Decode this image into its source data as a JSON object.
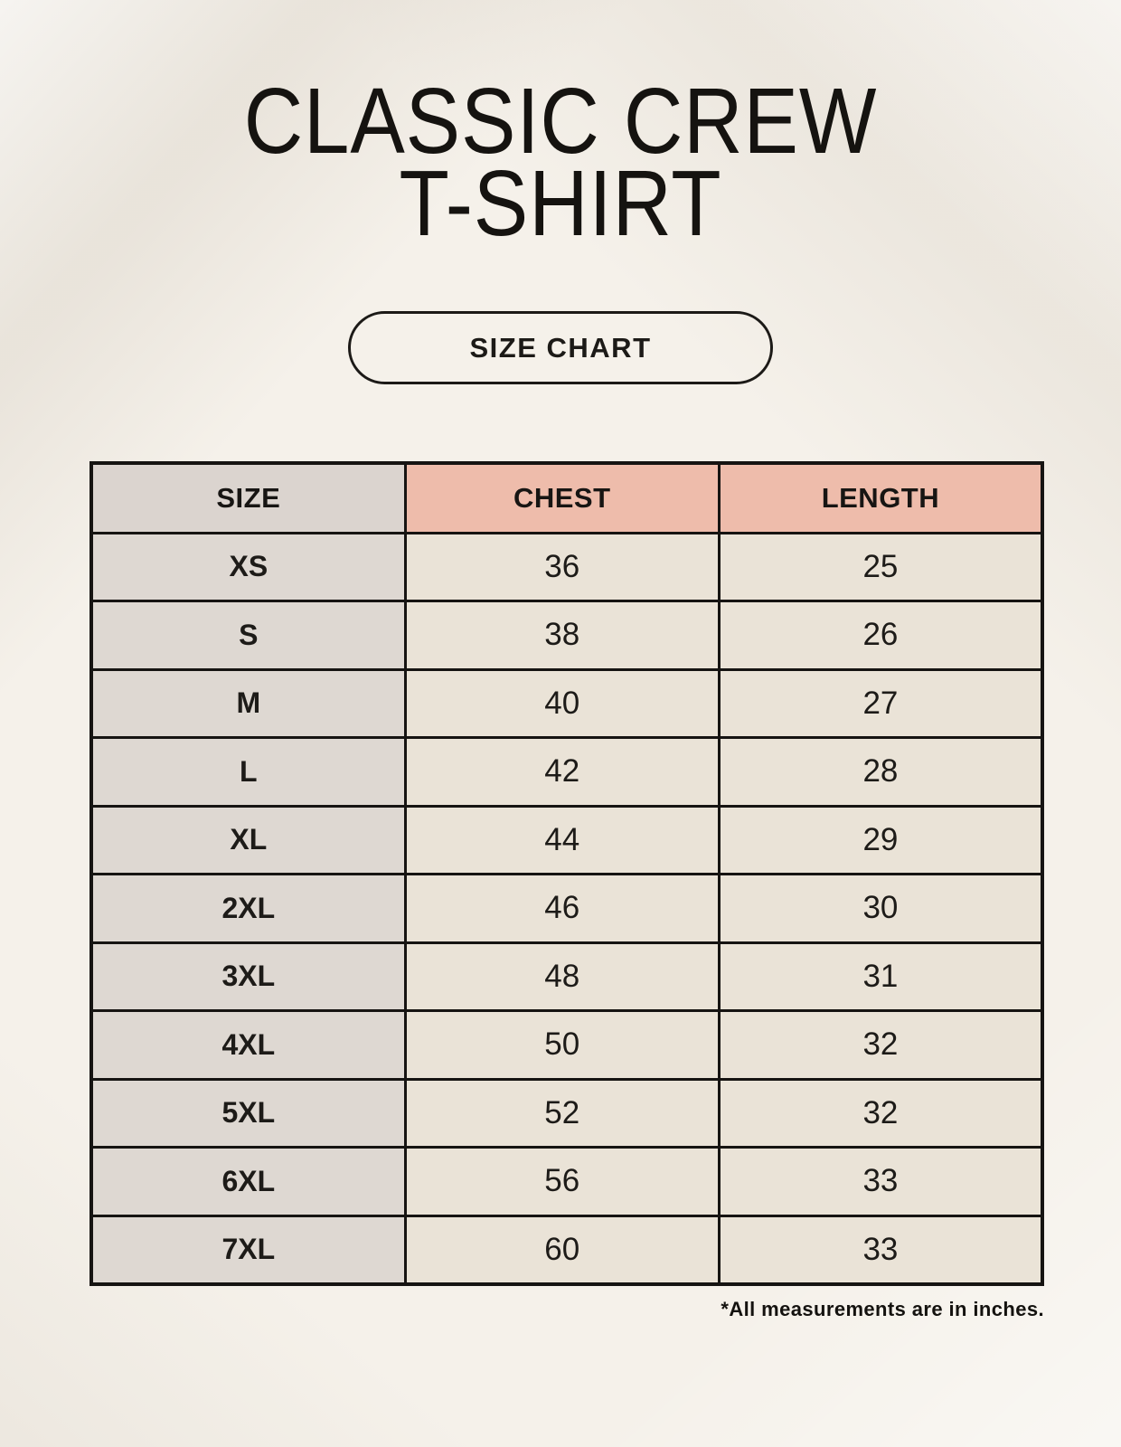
{
  "page": {
    "title_line1": "CLASSIC CREW",
    "title_line2": "T-SHIRT",
    "badge_label": "SIZE CHART",
    "footnote": "*All measurements are in inches."
  },
  "table": {
    "headers": [
      "SIZE",
      "CHEST",
      "LENGTH"
    ],
    "rows": [
      {
        "size": "XS",
        "chest": "36",
        "length": "25"
      },
      {
        "size": "S",
        "chest": "38",
        "length": "26"
      },
      {
        "size": "M",
        "chest": "40",
        "length": "27"
      },
      {
        "size": "L",
        "chest": "42",
        "length": "28"
      },
      {
        "size": "XL",
        "chest": "44",
        "length": "29"
      },
      {
        "size": "2XL",
        "chest": "46",
        "length": "30"
      },
      {
        "size": "3XL",
        "chest": "48",
        "length": "31"
      },
      {
        "size": "4XL",
        "chest": "50",
        "length": "32"
      },
      {
        "size": "5XL",
        "chest": "52",
        "length": "32"
      },
      {
        "size": "6XL",
        "chest": "56",
        "length": "33"
      },
      {
        "size": "7XL",
        "chest": "60",
        "length": "33"
      }
    ],
    "units": "inches"
  },
  "colors": {
    "background": "#f5f1ea",
    "accent_header": "#eebcab",
    "size_column": "#ded8d2",
    "size_header": "#dbd4cf",
    "data_cell": "#eae3d7",
    "border": "#161412",
    "text": "#171513"
  }
}
